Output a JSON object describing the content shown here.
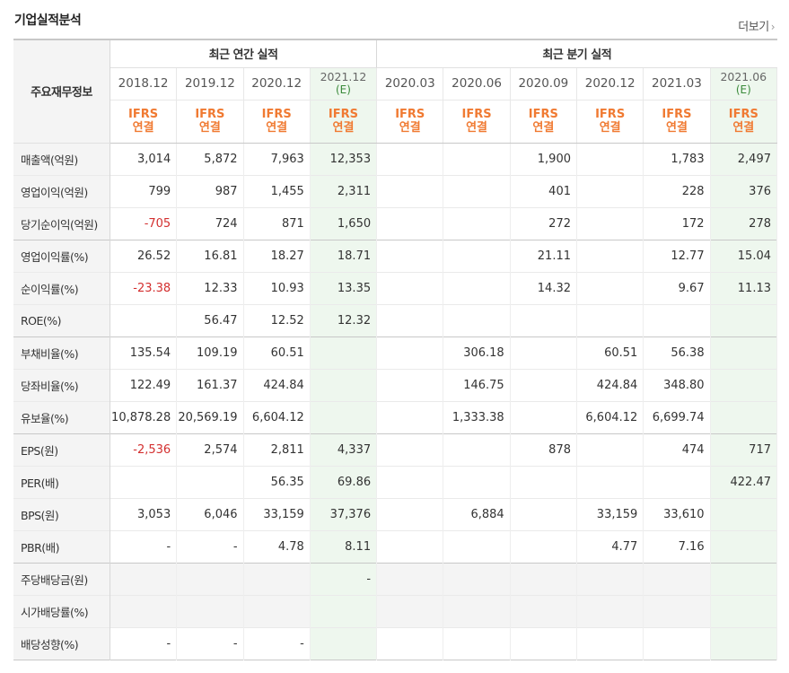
{
  "title": "기업실적분석",
  "more": "더보기",
  "header": {
    "label": "주요재무정보",
    "annual_group": "최근 연간 실적",
    "quarter_group": "최근 분기 실적",
    "periods": [
      {
        "p": "2018.12",
        "e": "",
        "est": false
      },
      {
        "p": "2019.12",
        "e": "",
        "est": false
      },
      {
        "p": "2020.12",
        "e": "",
        "est": false
      },
      {
        "p": "2021.12",
        "e": "(E)",
        "est": true
      },
      {
        "p": "2020.03",
        "e": "",
        "est": false
      },
      {
        "p": "2020.06",
        "e": "",
        "est": false
      },
      {
        "p": "2020.09",
        "e": "",
        "est": false
      },
      {
        "p": "2020.12",
        "e": "",
        "est": false
      },
      {
        "p": "2021.03",
        "e": "",
        "est": false
      },
      {
        "p": "2021.06",
        "e": "(E)",
        "est": true
      }
    ],
    "basis_top": "IFRS",
    "basis_bottom": "연결"
  },
  "rows": [
    {
      "label": "매출액(억원)",
      "values": [
        "3,014",
        "5,872",
        "7,963",
        "12,353",
        "",
        "",
        "1,900",
        "",
        "1,783",
        "2,497"
      ],
      "group_end": false
    },
    {
      "label": "영업이익(억원)",
      "values": [
        "799",
        "987",
        "1,455",
        "2,311",
        "",
        "",
        "401",
        "",
        "228",
        "376"
      ],
      "group_end": false
    },
    {
      "label": "당기순이익(억원)",
      "values": [
        "-705",
        "724",
        "871",
        "1,650",
        "",
        "",
        "272",
        "",
        "172",
        "278"
      ],
      "group_end": true
    },
    {
      "label": "영업이익률(%)",
      "values": [
        "26.52",
        "16.81",
        "18.27",
        "18.71",
        "",
        "",
        "21.11",
        "",
        "12.77",
        "15.04"
      ],
      "group_end": false
    },
    {
      "label": "순이익률(%)",
      "values": [
        "-23.38",
        "12.33",
        "10.93",
        "13.35",
        "",
        "",
        "14.32",
        "",
        "9.67",
        "11.13"
      ],
      "group_end": false
    },
    {
      "label": "ROE(%)",
      "values": [
        "",
        "56.47",
        "12.52",
        "12.32",
        "",
        "",
        "",
        "",
        "",
        ""
      ],
      "group_end": true
    },
    {
      "label": "부채비율(%)",
      "values": [
        "135.54",
        "109.19",
        "60.51",
        "",
        "",
        "306.18",
        "",
        "60.51",
        "56.38",
        ""
      ],
      "group_end": false
    },
    {
      "label": "당좌비율(%)",
      "values": [
        "122.49",
        "161.37",
        "424.84",
        "",
        "",
        "146.75",
        "",
        "424.84",
        "348.80",
        ""
      ],
      "group_end": false
    },
    {
      "label": "유보율(%)",
      "values": [
        "10,878.28",
        "20,569.19",
        "6,604.12",
        "",
        "",
        "1,333.38",
        "",
        "6,604.12",
        "6,699.74",
        ""
      ],
      "group_end": true
    },
    {
      "label": "EPS(원)",
      "values": [
        "-2,536",
        "2,574",
        "2,811",
        "4,337",
        "",
        "",
        "878",
        "",
        "474",
        "717"
      ],
      "group_end": false
    },
    {
      "label": "PER(배)",
      "values": [
        "",
        "",
        "56.35",
        "69.86",
        "",
        "",
        "",
        "",
        "",
        "422.47"
      ],
      "group_end": false
    },
    {
      "label": "BPS(원)",
      "values": [
        "3,053",
        "6,046",
        "33,159",
        "37,376",
        "",
        "6,884",
        "",
        "33,159",
        "33,610",
        ""
      ],
      "group_end": false
    },
    {
      "label": "PBR(배)",
      "values": [
        "-",
        "-",
        "4.78",
        "8.11",
        "",
        "",
        "",
        "4.77",
        "7.16",
        ""
      ],
      "group_end": true
    },
    {
      "label": "주당배당금(원)",
      "values": [
        "",
        "",
        "",
        "-",
        "",
        "",
        "",
        "",
        "",
        ""
      ],
      "group_end": false,
      "gray": true
    },
    {
      "label": "시가배당률(%)",
      "values": [
        "",
        "",
        "",
        "",
        "",
        "",
        "",
        "",
        "",
        ""
      ],
      "group_end": false,
      "gray": true
    },
    {
      "label": "배당성향(%)",
      "values": [
        "-",
        "-",
        "-",
        "",
        "",
        "",
        "",
        "",
        "",
        ""
      ],
      "group_end": false,
      "gray": false,
      "last": true
    }
  ],
  "colors": {
    "negative": "#d32f2f",
    "basis": "#f07a32",
    "estimate_bg": "#eef7ee",
    "estimate_text": "#3a8a3a"
  }
}
